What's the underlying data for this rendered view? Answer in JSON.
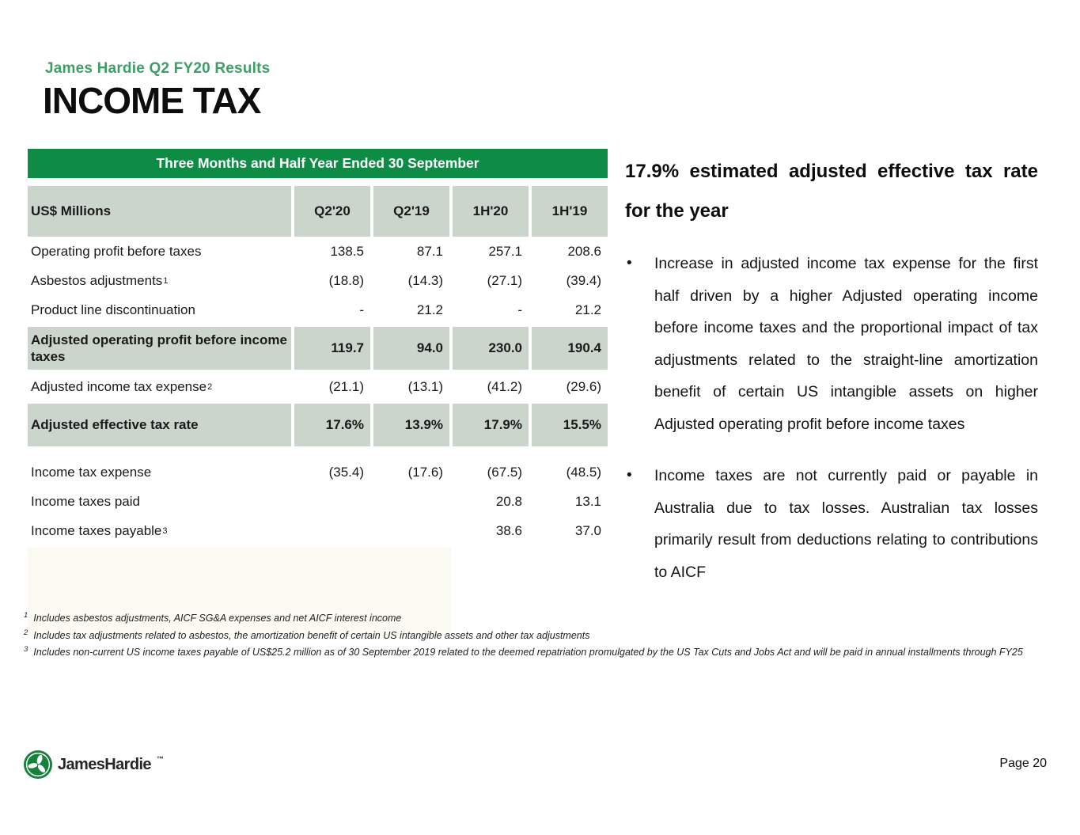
{
  "slide": {
    "eyebrow": "James Hardie Q2 FY20 Results",
    "title": "INCOME TAX",
    "page_label": "Page 20",
    "logo_text": "JamesHardie",
    "logo_tm": "™"
  },
  "table": {
    "banner": "Three Months and Half Year Ended 30 September",
    "columns": [
      "US$ Millions",
      "Q2'20",
      "Q2'19",
      "1H'20",
      "1H'19"
    ],
    "rows": [
      {
        "label": "Operating profit before taxes",
        "sup": "",
        "values": [
          "138.5",
          "87.1",
          "257.1",
          "208.6"
        ],
        "style": "normal",
        "gap_before": false
      },
      {
        "label": "Asbestos adjustments",
        "sup": "1",
        "values": [
          "(18.8)",
          "(14.3)",
          "(27.1)",
          "(39.4)"
        ],
        "style": "normal",
        "gap_before": false
      },
      {
        "label": "Product line discontinuation",
        "sup": "",
        "values": [
          "-",
          "21.2",
          "-",
          "21.2"
        ],
        "style": "normal",
        "gap_before": false
      },
      {
        "label": "Adjusted operating profit before income taxes",
        "sup": "",
        "values": [
          "119.7",
          "94.0",
          "230.0",
          "190.4"
        ],
        "style": "highlight",
        "gap_before": false
      },
      {
        "label": "Adjusted income tax expense",
        "sup": "2",
        "values": [
          "(21.1)",
          "(13.1)",
          "(41.2)",
          "(29.6)"
        ],
        "style": "normal",
        "gap_before": false
      },
      {
        "label": "Adjusted effective tax rate",
        "sup": "",
        "values": [
          "17.6%",
          "13.9%",
          "17.9%",
          "15.5%"
        ],
        "style": "highlight",
        "gap_before": false
      },
      {
        "label": "Income tax expense",
        "sup": "",
        "values": [
          "(35.4)",
          "(17.6)",
          "(67.5)",
          "(48.5)"
        ],
        "style": "normal",
        "gap_before": true
      },
      {
        "label": "Income taxes paid",
        "sup": "",
        "values": [
          "",
          "",
          "20.8",
          "13.1"
        ],
        "style": "normal",
        "gap_before": false
      },
      {
        "label": "Income taxes payable",
        "sup": "3",
        "values": [
          "",
          "",
          "38.6",
          "37.0"
        ],
        "style": "normal",
        "gap_before": false
      }
    ]
  },
  "right_panel": {
    "heading_lines": [
      "17.9% estimated adjusted effective tax rate",
      "for the year"
    ],
    "bullets": [
      "Increase in adjusted income tax expense for the first half driven by a higher Adjusted operating income before income taxes and the proportional impact of tax adjustments related to the straight-line amortization benefit of certain US intangible assets on higher Adjusted operating profit before income taxes",
      "Income taxes are not currently paid or payable in Australia due to tax losses. Australian tax losses primarily result from deductions relating to contributions to AICF"
    ]
  },
  "footnotes": [
    {
      "sup": "1",
      "text": "Includes asbestos adjustments, AICF SG&A expenses and net AICF interest income"
    },
    {
      "sup": "2",
      "text": "Includes tax adjustments related to asbestos, the amortization benefit of certain US intangible assets and other tax adjustments"
    },
    {
      "sup": "3",
      "text": "Includes non-current US income taxes payable of US$25.2 million as of 30 September 2019 related to the deemed repatriation promulgated by the US Tax Cuts and Jobs Act and will be paid in annual installments through FY25"
    }
  ],
  "colors": {
    "banner_green": "#0E8C46",
    "eyebrow_green": "#3F9E68",
    "sage": "#CBD5CB",
    "logo_green": "#15823C"
  }
}
